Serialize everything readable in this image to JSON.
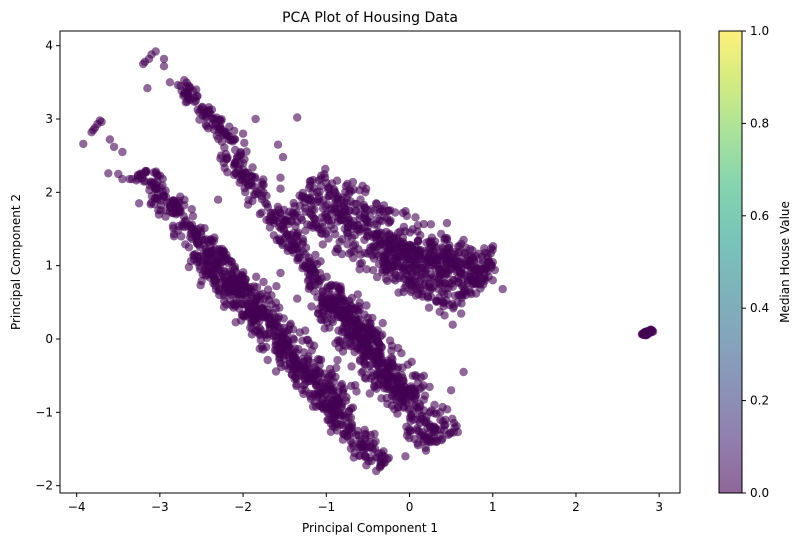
{
  "chart_data": {
    "type": "scatter",
    "title": "PCA Plot of Housing Data",
    "xlabel": "Principal Component 1",
    "ylabel": "Principal Component 2",
    "xlim": [
      -4.2,
      3.25
    ],
    "ylim": [
      -2.1,
      4.2
    ],
    "xticks": [
      -4,
      -3,
      -2,
      -1,
      0,
      1,
      2,
      3
    ],
    "yticks": [
      -2,
      -1,
      0,
      1,
      2,
      3,
      4
    ],
    "marker_color": "#440154",
    "marker_alpha": 0.6,
    "grid": false,
    "colorbar": {
      "label": "Median House Value",
      "ticks": [
        "0.0",
        "0.2",
        "0.4",
        "0.6",
        "0.8",
        "1.0"
      ],
      "range": [
        0.0,
        1.0
      ],
      "colormap": [
        "#440154",
        "#482878",
        "#3e4989",
        "#31688e",
        "#26828e",
        "#1f9e89",
        "#35b779",
        "#6ece58",
        "#b5de2b",
        "#fde725"
      ]
    },
    "clusters": [
      {
        "from": [
          -3.2,
          2.3
        ],
        "to": [
          -0.35,
          -1.75
        ],
        "width": 0.22,
        "count": 560
      },
      {
        "from": [
          -2.2,
          2.55
        ],
        "to": [
          0.0,
          -0.9
        ],
        "width": 0.18,
        "count": 400
      },
      {
        "from": [
          -1.3,
          2.0
        ],
        "to": [
          0.8,
          0.6
        ],
        "width": 0.55,
        "count": 560
      },
      {
        "from": [
          -0.3,
          1.1
        ],
        "to": [
          1.0,
          1.0
        ],
        "width": 0.35,
        "count": 200
      },
      {
        "from": [
          -1.0,
          0.6
        ],
        "to": [
          0.4,
          -1.4
        ],
        "width": 0.35,
        "count": 380
      },
      {
        "from": [
          -2.5,
          1.2
        ],
        "to": [
          -0.8,
          -0.9
        ],
        "width": 0.35,
        "count": 320
      },
      {
        "from": [
          -2.8,
          3.5
        ],
        "to": [
          -2.0,
          2.5
        ],
        "width": 0.15,
        "count": 90
      },
      {
        "from": [
          2.8,
          0.05
        ],
        "to": [
          2.92,
          0.12
        ],
        "width": 0.03,
        "count": 40
      }
    ],
    "points": [
      [
        -3.1,
        3.88
      ],
      [
        -3.05,
        3.92
      ],
      [
        -3.13,
        3.82
      ],
      [
        -3.18,
        3.78
      ],
      [
        -3.2,
        3.75
      ],
      [
        -2.95,
        3.82
      ],
      [
        -2.95,
        3.72
      ],
      [
        -2.88,
        3.5
      ],
      [
        -3.15,
        3.42
      ],
      [
        -2.75,
        3.45
      ],
      [
        -2.7,
        3.35
      ],
      [
        -2.6,
        3.38
      ],
      [
        -2.65,
        3.45
      ],
      [
        -3.72,
        2.98
      ],
      [
        -3.75,
        2.93
      ],
      [
        -3.78,
        2.88
      ],
      [
        -3.82,
        2.82
      ],
      [
        -3.8,
        2.85
      ],
      [
        -3.7,
        2.96
      ],
      [
        -3.92,
        2.66
      ],
      [
        -3.6,
        2.72
      ],
      [
        -3.55,
        2.62
      ],
      [
        -3.45,
        2.55
      ],
      [
        -3.62,
        2.26
      ],
      [
        -3.5,
        2.25
      ],
      [
        -3.45,
        2.18
      ],
      [
        -3.25,
        1.85
      ],
      [
        -2.3,
        1.9
      ],
      [
        -1.55,
        2.05
      ],
      [
        -1.2,
        1.72
      ],
      [
        -1.0,
        1.7
      ],
      [
        -0.55,
        1.65
      ],
      [
        -0.4,
        1.85
      ],
      [
        -0.25,
        1.75
      ],
      [
        -0.08,
        1.72
      ],
      [
        0.1,
        1.55
      ],
      [
        0.45,
        1.58
      ],
      [
        0.62,
        1.3
      ],
      [
        0.65,
        1.35
      ],
      [
        0.95,
        1.05
      ],
      [
        1.12,
        0.68
      ],
      [
        1.0,
        0.8
      ],
      [
        0.8,
        0.62
      ],
      [
        -2.1,
        0.95
      ],
      [
        -1.6,
        0.72
      ],
      [
        -1.35,
        0.55
      ],
      [
        -0.85,
        0.7
      ],
      [
        -1.25,
        1.15
      ],
      [
        -1.55,
        0.9
      ],
      [
        -1.2,
        0.95
      ],
      [
        -0.6,
        0.95
      ],
      [
        -1.1,
        0.35
      ],
      [
        0.65,
        -0.45
      ],
      [
        0.5,
        -0.7
      ],
      [
        0.3,
        -0.9
      ],
      [
        0.25,
        -1.2
      ],
      [
        0.05,
        -1.1
      ],
      [
        -0.05,
        -1.6
      ],
      [
        -0.4,
        -1.8
      ],
      [
        -1.35,
        3.02
      ],
      [
        -1.85,
        3.0
      ],
      [
        -2.0,
        2.8
      ],
      [
        -1.58,
        2.65
      ],
      [
        -1.52,
        2.48
      ],
      [
        -2.1,
        2.4
      ],
      [
        -1.55,
        2.2
      ],
      [
        -2.65,
        1.25
      ],
      [
        -2.55,
        1.3
      ],
      [
        -2.3,
        0.9
      ],
      [
        -1.95,
        0.45
      ],
      [
        -1.85,
        0.55
      ],
      [
        -2.78,
        1.48
      ],
      [
        -2.83,
        1.4
      ]
    ]
  }
}
